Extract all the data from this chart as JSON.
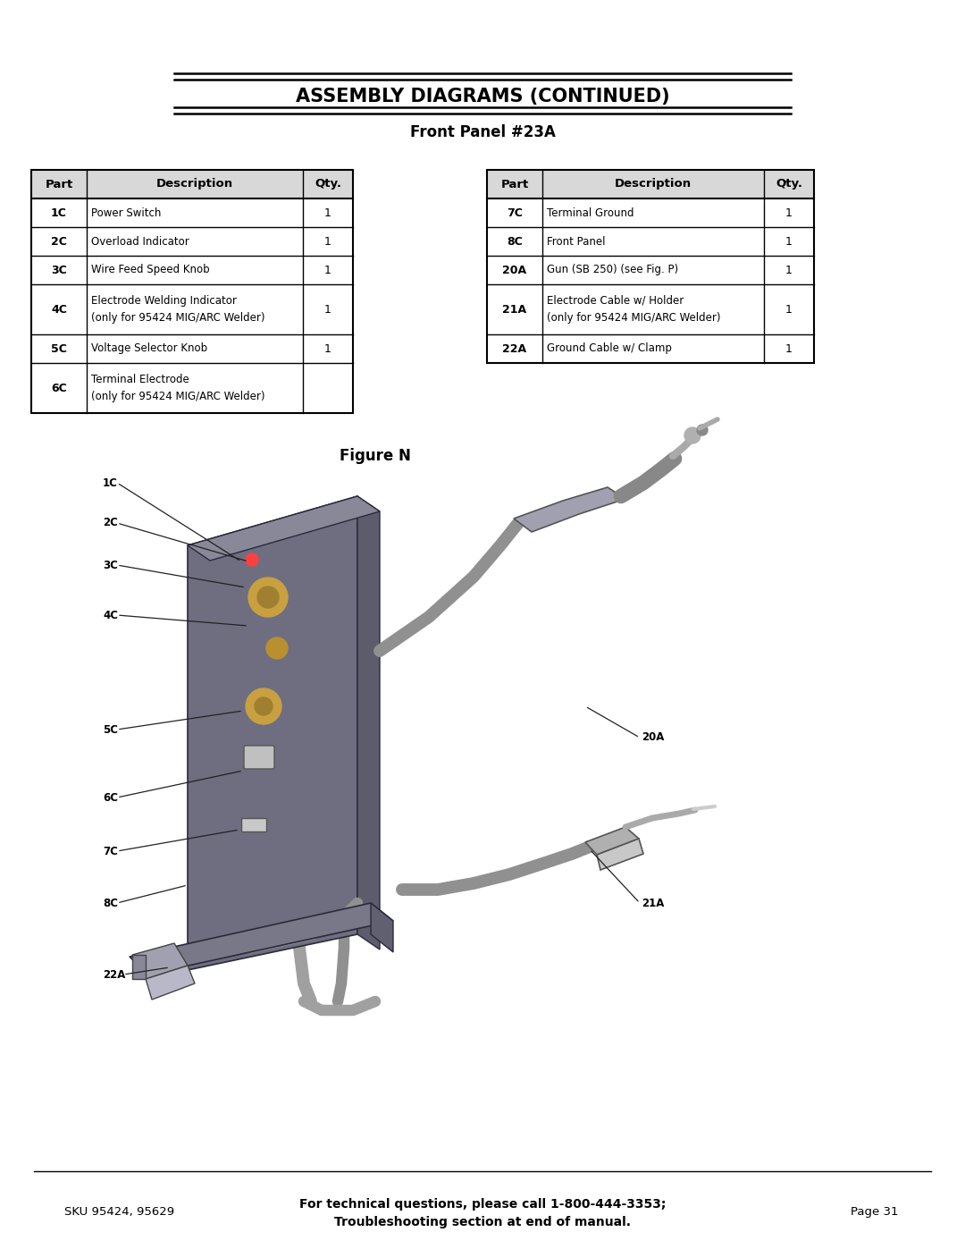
{
  "title_line1": "ASSEMBLY DIAGRAMS (CONTINUED)",
  "title_line2": "Front Panel #23A",
  "figure_caption": "Figure N",
  "table_left_headers": [
    "Part",
    "Description",
    "Qty."
  ],
  "table_left_rows": [
    [
      "1C",
      "Power Switch",
      "1"
    ],
    [
      "2C",
      "Overload Indicator",
      "1"
    ],
    [
      "3C",
      "Wire Feed Speed Knob",
      "1"
    ],
    [
      "4C",
      "Electrode Welding Indicator\n(only for 95424 MIG/ARC Welder)",
      "1"
    ],
    [
      "5C",
      "Voltage Selector Knob",
      "1"
    ],
    [
      "6C",
      "Terminal Electrode\n(only for 95424 MIG/ARC Welder)",
      ""
    ]
  ],
  "table_right_headers": [
    "Part",
    "Description",
    "Qty."
  ],
  "table_right_rows": [
    [
      "7C",
      "Terminal Ground",
      "1"
    ],
    [
      "8C",
      "Front Panel",
      "1"
    ],
    [
      "20A",
      "Gun (SB 250) (see Fig. P)",
      "1"
    ],
    [
      "21A",
      "Electrode Cable w/ Holder\n(only for 95424 MIG/ARC Welder)",
      "1"
    ],
    [
      "22A",
      "Ground Cable w/ Clamp",
      "1"
    ]
  ],
  "footer_left": "SKU 95424, 95629",
  "footer_center_line1": "For technical questions, please call 1-800-444-3353;",
  "footer_center_line2": "Troubleshooting section at end of manual.",
  "footer_right": "Page 31",
  "bg_color": "#ffffff",
  "text_color": "#000000",
  "border_color": "#000000",
  "header_bg": "#d8d8d8"
}
